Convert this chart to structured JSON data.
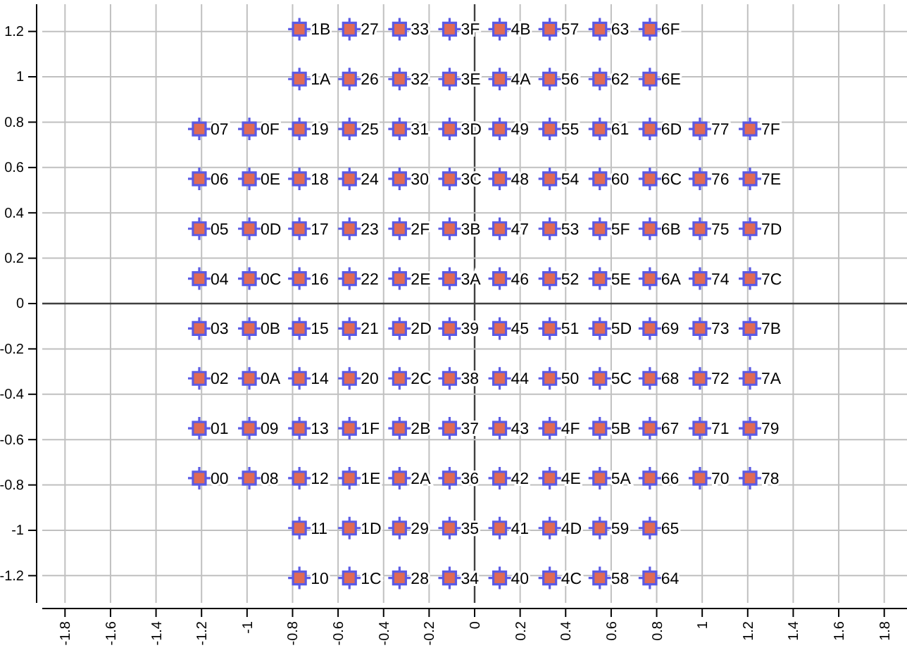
{
  "chart_data": {
    "type": "scatter",
    "xlim": [
      -1.9,
      1.9
    ],
    "ylim": [
      -1.32,
      1.32
    ],
    "xticks": [
      -1.8,
      -1.6,
      -1.4,
      -1.2,
      -1,
      -0.8,
      -0.6,
      -0.4,
      -0.2,
      0,
      0.2,
      0.4,
      0.6,
      0.8,
      1,
      1.2,
      1.4,
      1.6,
      1.8
    ],
    "yticks": [
      -1.2,
      -1,
      -0.8,
      -0.6,
      -0.4,
      -0.2,
      0,
      0.2,
      0.4,
      0.6,
      0.8,
      1,
      1.2
    ],
    "grid": true,
    "marker": "cross",
    "series": [
      {
        "color": "#5a5ae6",
        "x": [
          -1.21,
          -1.21,
          -1.21,
          -1.21,
          -1.21,
          -1.21,
          -1.21,
          -1.21,
          -0.99,
          -0.99,
          -0.99,
          -0.99,
          -0.99,
          -0.99,
          -0.99,
          -0.99,
          -0.77,
          -0.77,
          -0.77,
          -0.77,
          -0.77,
          -0.77,
          -0.77,
          -0.77,
          -0.77,
          -0.77,
          -0.77,
          -0.77,
          -0.55,
          -0.55,
          -0.55,
          -0.55,
          -0.55,
          -0.55,
          -0.55,
          -0.55,
          -0.55,
          -0.55,
          -0.55,
          -0.55,
          -0.33,
          -0.33,
          -0.33,
          -0.33,
          -0.33,
          -0.33,
          -0.33,
          -0.33,
          -0.33,
          -0.33,
          -0.33,
          -0.33,
          -0.11,
          -0.11,
          -0.11,
          -0.11,
          -0.11,
          -0.11,
          -0.11,
          -0.11,
          -0.11,
          -0.11,
          -0.11,
          -0.11,
          0.11,
          0.11,
          0.11,
          0.11,
          0.11,
          0.11,
          0.11,
          0.11,
          0.11,
          0.11,
          0.11,
          0.11,
          0.33,
          0.33,
          0.33,
          0.33,
          0.33,
          0.33,
          0.33,
          0.33,
          0.33,
          0.33,
          0.33,
          0.33,
          0.55,
          0.55,
          0.55,
          0.55,
          0.55,
          0.55,
          0.55,
          0.55,
          0.55,
          0.55,
          0.55,
          0.55,
          0.77,
          0.77,
          0.77,
          0.77,
          0.77,
          0.77,
          0.77,
          0.77,
          0.77,
          0.77,
          0.77,
          0.77,
          0.99,
          0.99,
          0.99,
          0.99,
          0.99,
          0.99,
          0.99,
          0.99,
          1.21,
          1.21,
          1.21,
          1.21,
          1.21,
          1.21,
          1.21,
          1.21
        ],
        "values": [
          -0.77,
          -0.55,
          -0.33,
          -0.11,
          0.11,
          0.33,
          0.55,
          0.77,
          -0.77,
          -0.55,
          -0.33,
          -0.11,
          0.11,
          0.33,
          0.55,
          0.77,
          -1.21,
          -0.99,
          -0.77,
          -0.55,
          -0.33,
          -0.11,
          0.11,
          0.33,
          0.55,
          0.77,
          0.99,
          1.21,
          -1.21,
          -0.99,
          -0.77,
          -0.55,
          -0.33,
          -0.11,
          0.11,
          0.33,
          0.55,
          0.77,
          0.99,
          1.21,
          -1.21,
          -0.99,
          -0.77,
          -0.55,
          -0.33,
          -0.11,
          0.11,
          0.33,
          0.55,
          0.77,
          0.99,
          1.21,
          -1.21,
          -0.99,
          -0.77,
          -0.55,
          -0.33,
          -0.11,
          0.11,
          0.33,
          0.55,
          0.77,
          0.99,
          1.21,
          -1.21,
          -0.99,
          -0.77,
          -0.55,
          -0.33,
          -0.11,
          0.11,
          0.33,
          0.55,
          0.77,
          0.99,
          1.21,
          -1.21,
          -0.99,
          -0.77,
          -0.55,
          -0.33,
          -0.11,
          0.11,
          0.33,
          0.55,
          0.77,
          0.99,
          1.21,
          -1.21,
          -0.99,
          -0.77,
          -0.55,
          -0.33,
          -0.11,
          0.11,
          0.33,
          0.55,
          0.77,
          0.99,
          1.21,
          -1.21,
          -0.99,
          -0.77,
          -0.55,
          -0.33,
          -0.11,
          0.11,
          0.33,
          0.55,
          0.77,
          0.99,
          1.21,
          -0.77,
          -0.55,
          -0.33,
          -0.11,
          0.11,
          0.33,
          0.55,
          0.77,
          -0.77,
          -0.55,
          -0.33,
          -0.11,
          0.11,
          0.33,
          0.55,
          0.77
        ]
      }
    ],
    "annotations": [
      {
        "text": "00",
        "x": -1.21,
        "y": -0.77
      },
      {
        "text": "01",
        "x": -1.21,
        "y": -0.55
      },
      {
        "text": "02",
        "x": -1.21,
        "y": -0.33
      },
      {
        "text": "03",
        "x": -1.21,
        "y": -0.11
      },
      {
        "text": "04",
        "x": -1.21,
        "y": 0.11
      },
      {
        "text": "05",
        "x": -1.21,
        "y": 0.33
      },
      {
        "text": "06",
        "x": -1.21,
        "y": 0.55
      },
      {
        "text": "07",
        "x": -1.21,
        "y": 0.77
      },
      {
        "text": "08",
        "x": -0.99,
        "y": -0.77
      },
      {
        "text": "09",
        "x": -0.99,
        "y": -0.55
      },
      {
        "text": "0A",
        "x": -0.99,
        "y": -0.33
      },
      {
        "text": "0B",
        "x": -0.99,
        "y": -0.11
      },
      {
        "text": "0C",
        "x": -0.99,
        "y": 0.11
      },
      {
        "text": "0D",
        "x": -0.99,
        "y": 0.33
      },
      {
        "text": "0E",
        "x": -0.99,
        "y": 0.55
      },
      {
        "text": "0F",
        "x": -0.99,
        "y": 0.77
      },
      {
        "text": "10",
        "x": -0.77,
        "y": -1.21
      },
      {
        "text": "11",
        "x": -0.77,
        "y": -0.99
      },
      {
        "text": "12",
        "x": -0.77,
        "y": -0.77
      },
      {
        "text": "13",
        "x": -0.77,
        "y": -0.55
      },
      {
        "text": "14",
        "x": -0.77,
        "y": -0.33
      },
      {
        "text": "15",
        "x": -0.77,
        "y": -0.11
      },
      {
        "text": "16",
        "x": -0.77,
        "y": 0.11
      },
      {
        "text": "17",
        "x": -0.77,
        "y": 0.33
      },
      {
        "text": "18",
        "x": -0.77,
        "y": 0.55
      },
      {
        "text": "19",
        "x": -0.77,
        "y": 0.77
      },
      {
        "text": "1A",
        "x": -0.77,
        "y": 0.99
      },
      {
        "text": "1B",
        "x": -0.77,
        "y": 1.21
      },
      {
        "text": "1C",
        "x": -0.55,
        "y": -1.21
      },
      {
        "text": "1D",
        "x": -0.55,
        "y": -0.99
      },
      {
        "text": "1E",
        "x": -0.55,
        "y": -0.77
      },
      {
        "text": "1F",
        "x": -0.55,
        "y": -0.55
      },
      {
        "text": "20",
        "x": -0.55,
        "y": -0.33
      },
      {
        "text": "21",
        "x": -0.55,
        "y": -0.11
      },
      {
        "text": "22",
        "x": -0.55,
        "y": 0.11
      },
      {
        "text": "23",
        "x": -0.55,
        "y": 0.33
      },
      {
        "text": "24",
        "x": -0.55,
        "y": 0.55
      },
      {
        "text": "25",
        "x": -0.55,
        "y": 0.77
      },
      {
        "text": "26",
        "x": -0.55,
        "y": 0.99
      },
      {
        "text": "27",
        "x": -0.55,
        "y": 1.21
      },
      {
        "text": "28",
        "x": -0.33,
        "y": -1.21
      },
      {
        "text": "29",
        "x": -0.33,
        "y": -0.99
      },
      {
        "text": "2A",
        "x": -0.33,
        "y": -0.77
      },
      {
        "text": "2B",
        "x": -0.33,
        "y": -0.55
      },
      {
        "text": "2C",
        "x": -0.33,
        "y": -0.33
      },
      {
        "text": "2D",
        "x": -0.33,
        "y": -0.11
      },
      {
        "text": "2E",
        "x": -0.33,
        "y": 0.11
      },
      {
        "text": "2F",
        "x": -0.33,
        "y": 0.33
      },
      {
        "text": "30",
        "x": -0.33,
        "y": 0.55
      },
      {
        "text": "31",
        "x": -0.33,
        "y": 0.77
      },
      {
        "text": "32",
        "x": -0.33,
        "y": 0.99
      },
      {
        "text": "33",
        "x": -0.33,
        "y": 1.21
      },
      {
        "text": "34",
        "x": -0.11,
        "y": -1.21
      },
      {
        "text": "35",
        "x": -0.11,
        "y": -0.99
      },
      {
        "text": "36",
        "x": -0.11,
        "y": -0.77
      },
      {
        "text": "37",
        "x": -0.11,
        "y": -0.55
      },
      {
        "text": "38",
        "x": -0.11,
        "y": -0.33
      },
      {
        "text": "39",
        "x": -0.11,
        "y": -0.11
      },
      {
        "text": "3A",
        "x": -0.11,
        "y": 0.11
      },
      {
        "text": "3B",
        "x": -0.11,
        "y": 0.33
      },
      {
        "text": "3C",
        "x": -0.11,
        "y": 0.55
      },
      {
        "text": "3D",
        "x": -0.11,
        "y": 0.77
      },
      {
        "text": "3E",
        "x": -0.11,
        "y": 0.99
      },
      {
        "text": "3F",
        "x": -0.11,
        "y": 1.21
      },
      {
        "text": "40",
        "x": 0.11,
        "y": -1.21
      },
      {
        "text": "41",
        "x": 0.11,
        "y": -0.99
      },
      {
        "text": "42",
        "x": 0.11,
        "y": -0.77
      },
      {
        "text": "43",
        "x": 0.11,
        "y": -0.55
      },
      {
        "text": "44",
        "x": 0.11,
        "y": -0.33
      },
      {
        "text": "45",
        "x": 0.11,
        "y": -0.11
      },
      {
        "text": "46",
        "x": 0.11,
        "y": 0.11
      },
      {
        "text": "47",
        "x": 0.11,
        "y": 0.33
      },
      {
        "text": "48",
        "x": 0.11,
        "y": 0.55
      },
      {
        "text": "49",
        "x": 0.11,
        "y": 0.77
      },
      {
        "text": "4A",
        "x": 0.11,
        "y": 0.99
      },
      {
        "text": "4B",
        "x": 0.11,
        "y": 1.21
      },
      {
        "text": "4C",
        "x": 0.33,
        "y": -1.21
      },
      {
        "text": "4D",
        "x": 0.33,
        "y": -0.99
      },
      {
        "text": "4E",
        "x": 0.33,
        "y": -0.77
      },
      {
        "text": "4F",
        "x": 0.33,
        "y": -0.55
      },
      {
        "text": "50",
        "x": 0.33,
        "y": -0.33
      },
      {
        "text": "51",
        "x": 0.33,
        "y": -0.11
      },
      {
        "text": "52",
        "x": 0.33,
        "y": 0.11
      },
      {
        "text": "53",
        "x": 0.33,
        "y": 0.33
      },
      {
        "text": "54",
        "x": 0.33,
        "y": 0.55
      },
      {
        "text": "55",
        "x": 0.33,
        "y": 0.77
      },
      {
        "text": "56",
        "x": 0.33,
        "y": 0.99
      },
      {
        "text": "57",
        "x": 0.33,
        "y": 1.21
      },
      {
        "text": "58",
        "x": 0.55,
        "y": -1.21
      },
      {
        "text": "59",
        "x": 0.55,
        "y": -0.99
      },
      {
        "text": "5A",
        "x": 0.55,
        "y": -0.77
      },
      {
        "text": "5B",
        "x": 0.55,
        "y": -0.55
      },
      {
        "text": "5C",
        "x": 0.55,
        "y": -0.33
      },
      {
        "text": "5D",
        "x": 0.55,
        "y": -0.11
      },
      {
        "text": "5E",
        "x": 0.55,
        "y": 0.11
      },
      {
        "text": "5F",
        "x": 0.55,
        "y": 0.33
      },
      {
        "text": "60",
        "x": 0.55,
        "y": 0.55
      },
      {
        "text": "61",
        "x": 0.55,
        "y": 0.77
      },
      {
        "text": "62",
        "x": 0.55,
        "y": 0.99
      },
      {
        "text": "63",
        "x": 0.55,
        "y": 1.21
      },
      {
        "text": "64",
        "x": 0.77,
        "y": -1.21
      },
      {
        "text": "65",
        "x": 0.77,
        "y": -0.99
      },
      {
        "text": "66",
        "x": 0.77,
        "y": -0.77
      },
      {
        "text": "67",
        "x": 0.77,
        "y": -0.55
      },
      {
        "text": "68",
        "x": 0.77,
        "y": -0.33
      },
      {
        "text": "69",
        "x": 0.77,
        "y": -0.11
      },
      {
        "text": "6A",
        "x": 0.77,
        "y": 0.11
      },
      {
        "text": "6B",
        "x": 0.77,
        "y": 0.33
      },
      {
        "text": "6C",
        "x": 0.77,
        "y": 0.55
      },
      {
        "text": "6D",
        "x": 0.77,
        "y": 0.77
      },
      {
        "text": "6E",
        "x": 0.77,
        "y": 0.99
      },
      {
        "text": "6F",
        "x": 0.77,
        "y": 1.21
      },
      {
        "text": "70",
        "x": 0.99,
        "y": -0.77
      },
      {
        "text": "71",
        "x": 0.99,
        "y": -0.55
      },
      {
        "text": "72",
        "x": 0.99,
        "y": -0.33
      },
      {
        "text": "73",
        "x": 0.99,
        "y": -0.11
      },
      {
        "text": "74",
        "x": 0.99,
        "y": 0.11
      },
      {
        "text": "75",
        "x": 0.99,
        "y": 0.33
      },
      {
        "text": "76",
        "x": 0.99,
        "y": 0.55
      },
      {
        "text": "77",
        "x": 0.99,
        "y": 0.77
      },
      {
        "text": "78",
        "x": 1.21,
        "y": -0.77
      },
      {
        "text": "79",
        "x": 1.21,
        "y": -0.55
      },
      {
        "text": "7A",
        "x": 1.21,
        "y": -0.33
      },
      {
        "text": "7B",
        "x": 1.21,
        "y": -0.11
      },
      {
        "text": "7C",
        "x": 1.21,
        "y": 0.11
      },
      {
        "text": "7D",
        "x": 1.21,
        "y": 0.33
      },
      {
        "text": "7E",
        "x": 1.21,
        "y": 0.55
      },
      {
        "text": "7F",
        "x": 1.21,
        "y": 0.77
      }
    ]
  }
}
